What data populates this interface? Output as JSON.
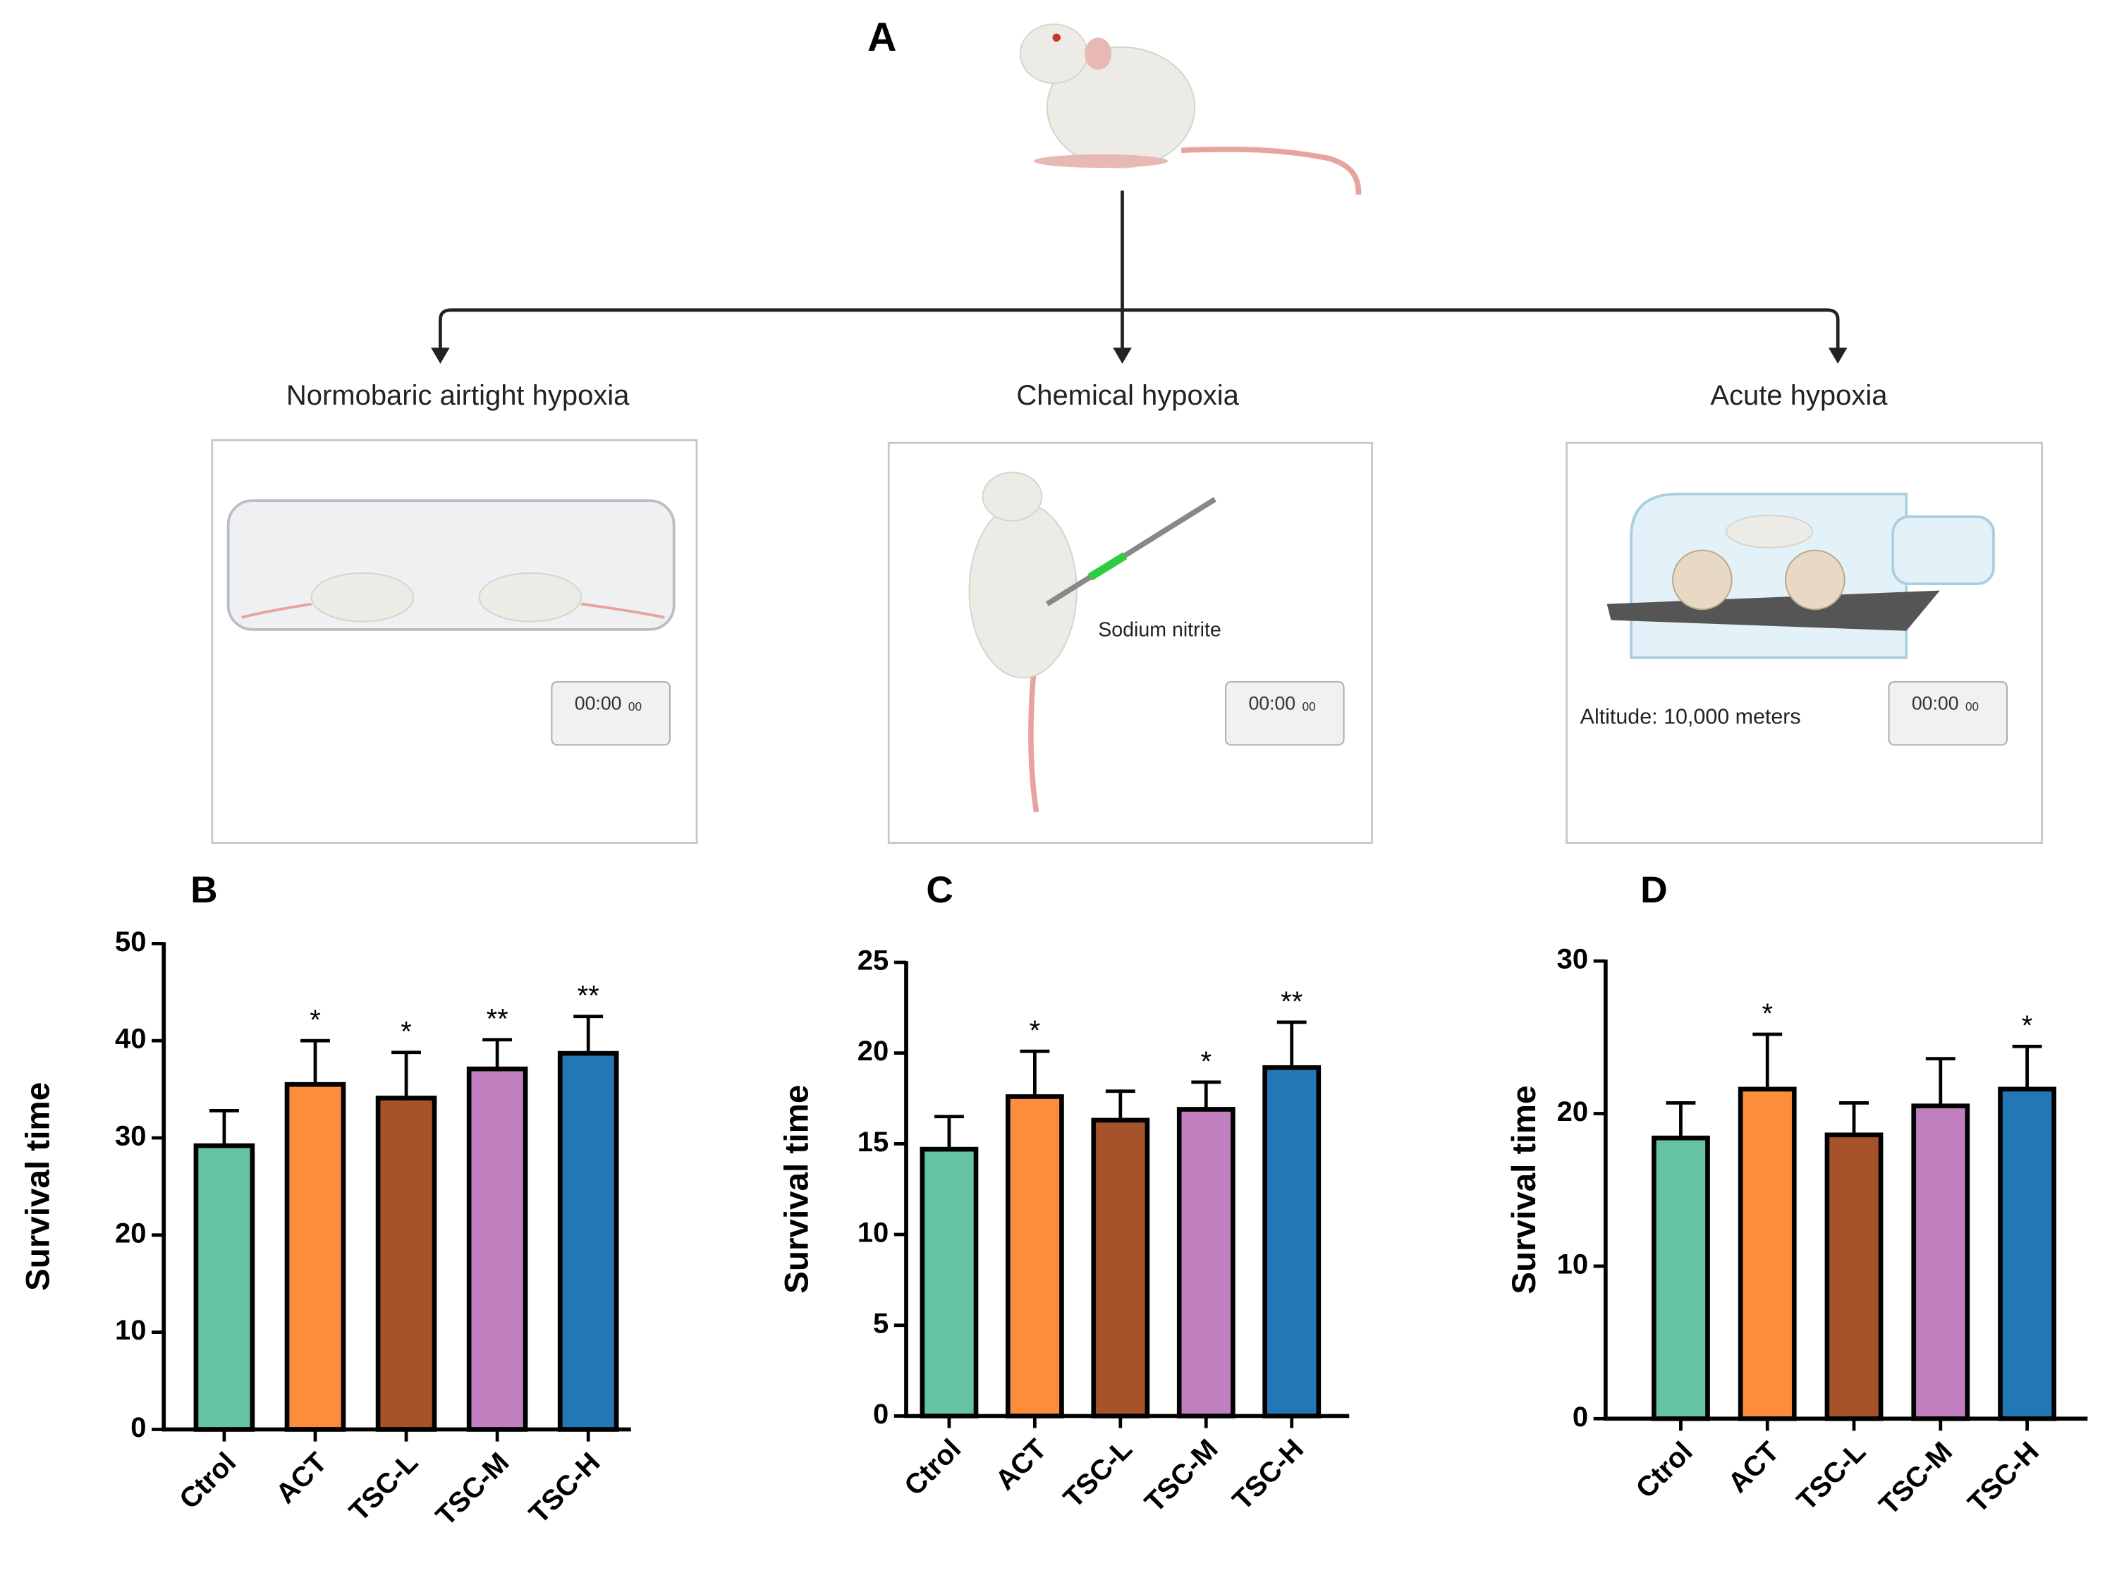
{
  "diagram": {
    "panel_label": "A",
    "branches": [
      "Normobaric airtight hypoxia",
      "Chemical hypoxia",
      "Acute hypoxia"
    ],
    "injection_label": "Sodium nitrite",
    "altitude_label": "Altitude: 10,000 meters",
    "timer": [
      "00:00",
      "00"
    ]
  },
  "chart_data": [
    {
      "type": "bar",
      "panel_label": "B",
      "y_label": "Survival time",
      "categories": [
        "Ctrol",
        "ACT",
        "TSC-L",
        "TSC-M",
        "TSC-H"
      ],
      "values": [
        29.2,
        35.5,
        34.1,
        37.1,
        38.7
      ],
      "errors": [
        3.6,
        4.5,
        4.7,
        3.0,
        3.8
      ],
      "significance": [
        null,
        "*",
        "*",
        "**",
        "**"
      ],
      "colors": [
        "#66c2a5",
        "#fc8d3c",
        "#a6522a",
        "#c07fbf",
        "#2277b4"
      ],
      "ylim": [
        0,
        50
      ],
      "yticks": [
        0,
        10,
        20,
        30,
        40,
        50
      ]
    },
    {
      "type": "bar",
      "panel_label": "C",
      "y_label": "Survival time",
      "categories": [
        "Ctrol",
        "ACT",
        "TSC-L",
        "TSC-M",
        "TSC-H"
      ],
      "values": [
        14.7,
        17.6,
        16.3,
        16.9,
        19.2
      ],
      "errors": [
        1.8,
        2.5,
        1.6,
        1.5,
        2.5
      ],
      "significance": [
        null,
        "*",
        null,
        "*",
        "**"
      ],
      "colors": [
        "#66c2a5",
        "#fc8d3c",
        "#a6522a",
        "#c07fbf",
        "#2277b4"
      ],
      "ylim": [
        0,
        25
      ],
      "yticks": [
        0,
        5,
        10,
        15,
        20,
        25
      ]
    },
    {
      "type": "bar",
      "panel_label": "D",
      "y_label": "Survival time",
      "categories": [
        "Ctrol",
        "ACT",
        "TSC-L",
        "TSC-M",
        "TSC-H"
      ],
      "values": [
        18.4,
        21.6,
        18.6,
        20.5,
        21.6
      ],
      "errors": [
        2.3,
        3.6,
        2.1,
        3.1,
        2.8
      ],
      "significance": [
        null,
        "*",
        null,
        null,
        "*"
      ],
      "colors": [
        "#66c2a5",
        "#fc8d3c",
        "#a6522a",
        "#c07fbf",
        "#2277b4"
      ],
      "ylim": [
        0,
        30
      ],
      "yticks": [
        0,
        10,
        20,
        30
      ]
    }
  ]
}
